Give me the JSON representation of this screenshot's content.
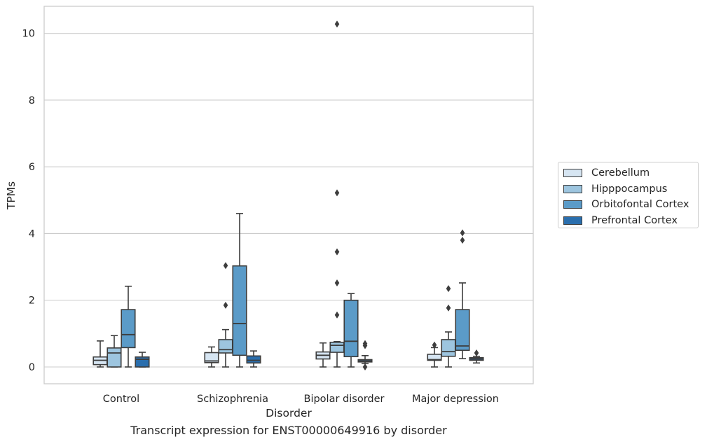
{
  "caption": "Transcript expression for ENST00000649916 by disorder",
  "chart_data": {
    "type": "box",
    "title": "",
    "xlabel": "Disorder",
    "ylabel": "TPMs",
    "ylim": [
      -0.5,
      10.8
    ],
    "yticks": [
      0,
      2,
      4,
      6,
      8,
      10
    ],
    "grid": "horizontal",
    "legend_position": "right",
    "categories": [
      "Control",
      "Schizophrenia",
      "Bipolar disorder",
      "Major depression"
    ],
    "series": [
      {
        "name": "Cerebellum",
        "color": "#d6e5f2",
        "boxes": [
          {
            "q1": 0.07,
            "median": 0.2,
            "q3": 0.3,
            "whisker_low": 0.0,
            "whisker_high": 0.78,
            "outliers": []
          },
          {
            "q1": 0.13,
            "median": 0.18,
            "q3": 0.43,
            "whisker_low": 0.0,
            "whisker_high": 0.6,
            "outliers": []
          },
          {
            "q1": 0.24,
            "median": 0.35,
            "q3": 0.45,
            "whisker_low": 0.0,
            "whisker_high": 0.72,
            "outliers": []
          },
          {
            "q1": 0.2,
            "median": 0.22,
            "q3": 0.38,
            "whisker_low": 0.0,
            "whisker_high": 0.58,
            "outliers": [
              0.66
            ]
          }
        ]
      },
      {
        "name": "Hipppocampus",
        "color": "#9dc5df",
        "boxes": [
          {
            "q1": 0.0,
            "median": 0.42,
            "q3": 0.57,
            "whisker_low": 0.0,
            "whisker_high": 0.94,
            "outliers": []
          },
          {
            "q1": 0.42,
            "median": 0.52,
            "q3": 0.82,
            "whisker_low": 0.0,
            "whisker_high": 1.12,
            "outliers": [
              1.85,
              3.04
            ]
          },
          {
            "q1": 0.44,
            "median": 0.65,
            "q3": 0.74,
            "whisker_low": 0.0,
            "whisker_high": 0.76,
            "outliers": [
              1.56,
              2.52,
              3.45,
              5.22,
              10.28
            ]
          },
          {
            "q1": 0.32,
            "median": 0.46,
            "q3": 0.82,
            "whisker_low": 0.0,
            "whisker_high": 1.05,
            "outliers": [
              1.77,
              2.35
            ]
          }
        ]
      },
      {
        "name": "Orbitofontal Cortex",
        "color": "#5b9bc8",
        "boxes": [
          {
            "q1": 0.58,
            "median": 0.97,
            "q3": 1.72,
            "whisker_low": 0.0,
            "whisker_high": 2.42,
            "outliers": []
          },
          {
            "q1": 0.35,
            "median": 1.3,
            "q3": 3.03,
            "whisker_low": 0.0,
            "whisker_high": 4.6,
            "outliers": []
          },
          {
            "q1": 0.31,
            "median": 0.77,
            "q3": 2.0,
            "whisker_low": 0.0,
            "whisker_high": 2.2,
            "outliers": []
          },
          {
            "q1": 0.5,
            "median": 0.63,
            "q3": 1.72,
            "whisker_low": 0.25,
            "whisker_high": 2.52,
            "outliers": [
              3.8,
              4.02
            ]
          }
        ]
      },
      {
        "name": "Prefrontal Cortex",
        "color": "#2a6ead",
        "boxes": [
          {
            "q1": 0.0,
            "median": 0.23,
            "q3": 0.3,
            "whisker_low": 0.0,
            "whisker_high": 0.44,
            "outliers": []
          },
          {
            "q1": 0.12,
            "median": 0.2,
            "q3": 0.33,
            "whisker_low": 0.0,
            "whisker_high": 0.48,
            "outliers": []
          },
          {
            "q1": 0.15,
            "median": 0.18,
            "q3": 0.22,
            "whisker_low": 0.1,
            "whisker_high": 0.34,
            "outliers": [
              0.0,
              0.64,
              0.7
            ]
          },
          {
            "q1": 0.2,
            "median": 0.24,
            "q3": 0.28,
            "whisker_low": 0.12,
            "whisker_high": 0.32,
            "outliers": [
              0.42
            ]
          }
        ]
      }
    ]
  }
}
